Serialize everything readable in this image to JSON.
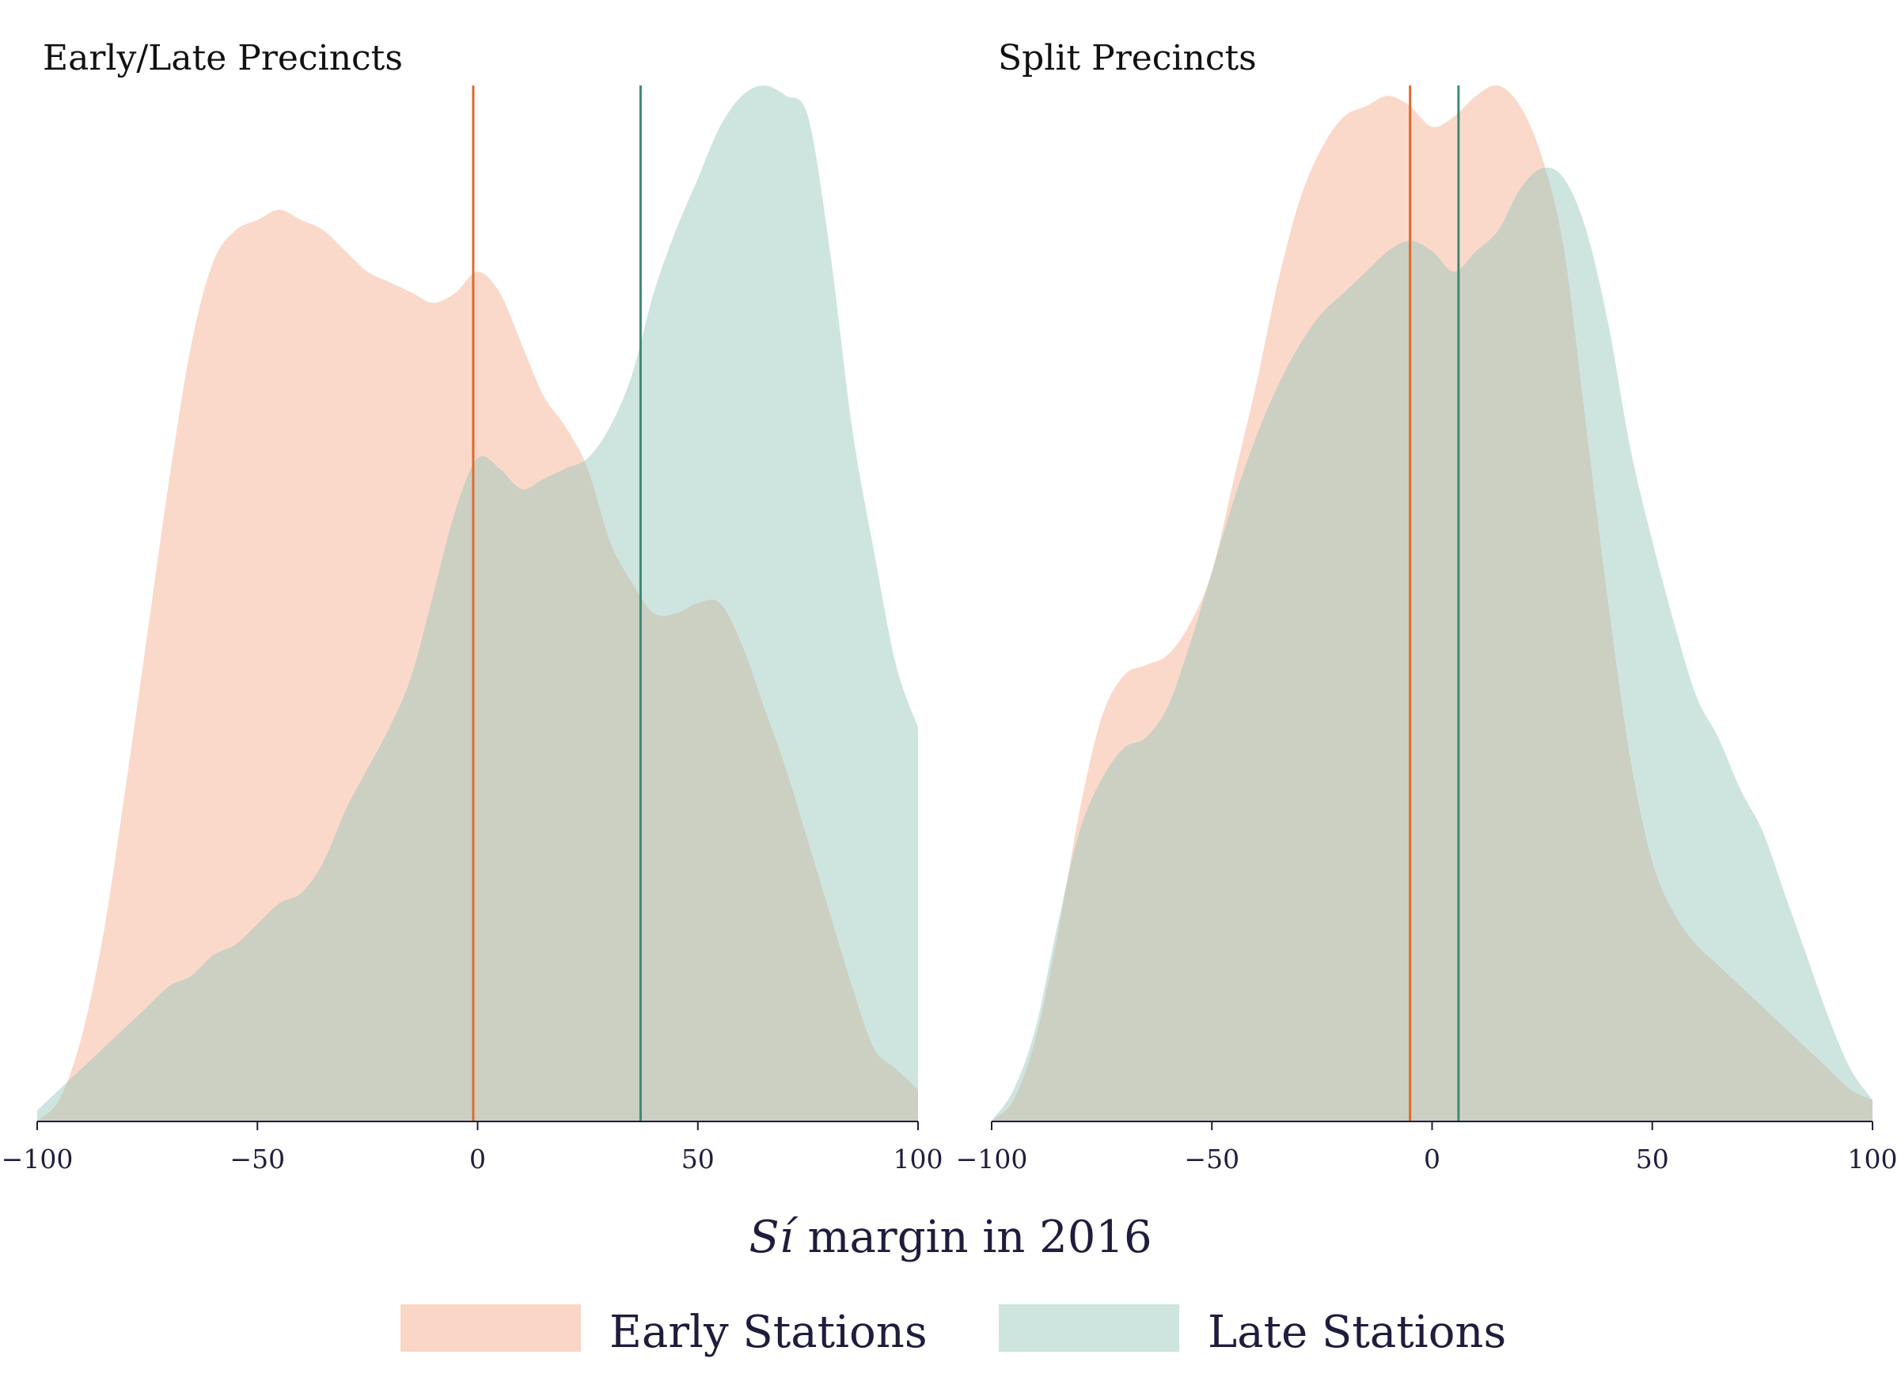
{
  "colors": {
    "early_fill": "#f4a582",
    "late_fill": "#92c5b8",
    "early_line": "#e06a2c",
    "late_line": "#3e8a75",
    "overlap_hint": "#c9c5b4",
    "text": "#1f1d3d"
  },
  "chart_data": [
    {
      "type": "area",
      "title": "Early/Late Precincts",
      "xlim": [
        -100,
        100
      ],
      "xticks": [
        -100,
        -50,
        0,
        50,
        100
      ],
      "xtick_labels": [
        "−100",
        "−50",
        "0",
        "50",
        "100"
      ],
      "ylim": [
        0,
        1
      ],
      "grid": false,
      "series": [
        {
          "name": "Early Stations",
          "mean": -1,
          "x": [
            -100,
            -95,
            -90,
            -85,
            -80,
            -75,
            -70,
            -65,
            -60,
            -55,
            -50,
            -45,
            -40,
            -35,
            -30,
            -25,
            -20,
            -15,
            -10,
            -5,
            0,
            5,
            10,
            15,
            20,
            25,
            30,
            35,
            40,
            45,
            50,
            55,
            60,
            65,
            70,
            75,
            80,
            85,
            90,
            95,
            100
          ],
          "y": [
            0.0,
            0.02,
            0.08,
            0.18,
            0.32,
            0.47,
            0.62,
            0.75,
            0.83,
            0.86,
            0.87,
            0.88,
            0.87,
            0.86,
            0.84,
            0.82,
            0.81,
            0.8,
            0.79,
            0.8,
            0.82,
            0.8,
            0.75,
            0.7,
            0.67,
            0.63,
            0.56,
            0.52,
            0.49,
            0.49,
            0.5,
            0.5,
            0.46,
            0.4,
            0.34,
            0.27,
            0.2,
            0.13,
            0.07,
            0.05,
            0.03
          ]
        },
        {
          "name": "Late Stations",
          "mean": 37,
          "x": [
            -100,
            -95,
            -90,
            -85,
            -80,
            -75,
            -70,
            -65,
            -60,
            -55,
            -50,
            -45,
            -40,
            -35,
            -30,
            -25,
            -20,
            -15,
            -10,
            -5,
            0,
            5,
            10,
            15,
            20,
            25,
            30,
            35,
            40,
            45,
            50,
            55,
            60,
            65,
            70,
            75,
            80,
            85,
            90,
            95,
            100
          ],
          "y": [
            0.01,
            0.03,
            0.05,
            0.07,
            0.09,
            0.11,
            0.13,
            0.14,
            0.16,
            0.17,
            0.19,
            0.21,
            0.22,
            0.25,
            0.3,
            0.34,
            0.38,
            0.43,
            0.51,
            0.59,
            0.64,
            0.63,
            0.61,
            0.62,
            0.63,
            0.64,
            0.67,
            0.72,
            0.8,
            0.86,
            0.91,
            0.96,
            0.99,
            1.0,
            0.99,
            0.97,
            0.84,
            0.67,
            0.55,
            0.44,
            0.38
          ]
        }
      ]
    },
    {
      "type": "area",
      "title": "Split Precincts",
      "xlim": [
        -100,
        100
      ],
      "xticks": [
        -100,
        -50,
        0,
        50,
        100
      ],
      "xtick_labels": [
        "−100",
        "−50",
        "0",
        "50",
        "100"
      ],
      "ylim": [
        0,
        1
      ],
      "grid": false,
      "series": [
        {
          "name": "Early Stations",
          "mean": -5,
          "x": [
            -100,
            -95,
            -90,
            -85,
            -80,
            -75,
            -70,
            -65,
            -60,
            -55,
            -50,
            -45,
            -40,
            -35,
            -30,
            -25,
            -20,
            -15,
            -10,
            -5,
            0,
            5,
            10,
            15,
            20,
            25,
            30,
            35,
            40,
            45,
            50,
            55,
            60,
            65,
            70,
            75,
            80,
            85,
            90,
            95,
            100
          ],
          "y": [
            0.0,
            0.02,
            0.08,
            0.18,
            0.3,
            0.39,
            0.43,
            0.44,
            0.45,
            0.48,
            0.53,
            0.62,
            0.71,
            0.81,
            0.89,
            0.94,
            0.97,
            0.98,
            0.99,
            0.98,
            0.96,
            0.97,
            0.99,
            1.0,
            0.98,
            0.93,
            0.84,
            0.67,
            0.5,
            0.35,
            0.25,
            0.2,
            0.17,
            0.15,
            0.13,
            0.11,
            0.09,
            0.07,
            0.05,
            0.03,
            0.02
          ]
        },
        {
          "name": "Late Stations",
          "mean": 6,
          "x": [
            -100,
            -95,
            -90,
            -85,
            -80,
            -75,
            -70,
            -65,
            -60,
            -55,
            -50,
            -45,
            -40,
            -35,
            -30,
            -25,
            -20,
            -15,
            -10,
            -5,
            0,
            5,
            10,
            15,
            20,
            25,
            30,
            35,
            40,
            45,
            50,
            55,
            60,
            65,
            70,
            75,
            80,
            85,
            90,
            95,
            100
          ],
          "y": [
            0.0,
            0.03,
            0.09,
            0.19,
            0.28,
            0.33,
            0.36,
            0.37,
            0.4,
            0.46,
            0.53,
            0.6,
            0.66,
            0.71,
            0.75,
            0.78,
            0.8,
            0.82,
            0.84,
            0.85,
            0.84,
            0.82,
            0.84,
            0.86,
            0.9,
            0.92,
            0.91,
            0.86,
            0.77,
            0.65,
            0.56,
            0.48,
            0.41,
            0.37,
            0.32,
            0.28,
            0.22,
            0.16,
            0.1,
            0.05,
            0.02
          ]
        }
      ]
    }
  ],
  "shared": {
    "xlabel_italic": "Sí",
    "xlabel_rest": " margin in 2016",
    "legend": {
      "placement": "bottom-center",
      "entries": [
        {
          "name": "Early Stations",
          "color": "#f4a582"
        },
        {
          "name": "Late Stations",
          "color": "#92c5b8"
        }
      ]
    }
  }
}
